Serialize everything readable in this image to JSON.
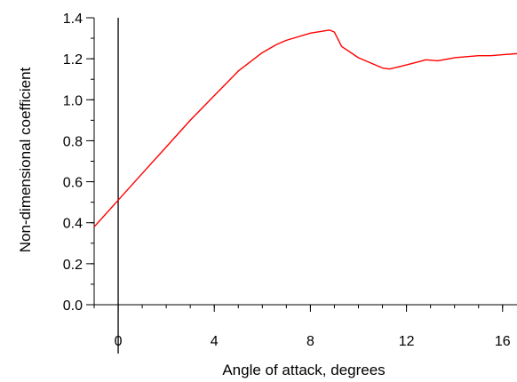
{
  "chart_data": {
    "type": "line",
    "title": "",
    "xlabel": "Angle of attack, degrees",
    "ylabel": "Non-dimensional coefficient",
    "xlim": [
      -1,
      16.6
    ],
    "ylim": [
      0,
      1.4
    ],
    "x_ticks": [
      0,
      4,
      8,
      12,
      16
    ],
    "x_tick_labels": [
      "0",
      "4",
      "8",
      "12",
      "16"
    ],
    "y_ticks": [
      0,
      0.2,
      0.4,
      0.6,
      0.8,
      1.0,
      1.2,
      1.4
    ],
    "y_tick_labels": [
      "0.0",
      "0.2",
      "0.4",
      "0.6",
      "0.8",
      "1.0",
      "1.2",
      "1.4"
    ],
    "x_minor_step": 1,
    "y_minor_step": 0.1,
    "grid": false,
    "legend": "none",
    "reference_line_x": 0,
    "series": [
      {
        "color": "#ff0000",
        "x": [
          -1,
          0,
          1,
          2,
          3,
          4,
          5,
          6,
          6.6,
          7,
          8,
          8.8,
          9,
          9.3,
          10,
          11,
          11.3,
          12,
          12.5,
          12.8,
          13.3,
          14,
          14.5,
          15,
          15.5,
          16,
          16.6
        ],
        "y": [
          0.38,
          0.51,
          0.64,
          0.77,
          0.9,
          1.02,
          1.14,
          1.23,
          1.27,
          1.29,
          1.325,
          1.34,
          1.33,
          1.26,
          1.205,
          1.155,
          1.15,
          1.17,
          1.185,
          1.195,
          1.19,
          1.205,
          1.21,
          1.215,
          1.215,
          1.22,
          1.225
        ]
      }
    ]
  }
}
